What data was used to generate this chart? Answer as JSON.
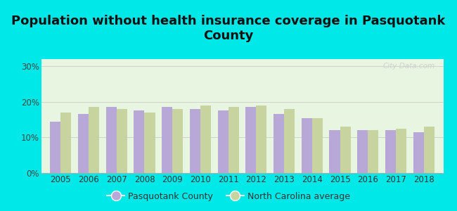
{
  "title": "Population without health insurance coverage in Pasquotank\nCounty",
  "years": [
    2005,
    2006,
    2007,
    2008,
    2009,
    2010,
    2011,
    2012,
    2013,
    2014,
    2015,
    2016,
    2017,
    2018
  ],
  "pasquotank": [
    14.5,
    16.5,
    18.5,
    17.5,
    18.5,
    18.0,
    17.5,
    18.5,
    16.5,
    15.5,
    12.0,
    12.0,
    12.0,
    11.5
  ],
  "nc_average": [
    17.0,
    18.5,
    18.0,
    17.0,
    18.0,
    19.0,
    18.5,
    19.0,
    18.0,
    15.5,
    13.0,
    12.0,
    12.5,
    13.0
  ],
  "pasquotank_color": "#b8a8d8",
  "nc_color": "#c8d4a0",
  "background_outer": "#00e8e8",
  "background_plot_top": "#e8f5e0",
  "background_plot_bottom": "#f5faf0",
  "ylim": [
    0,
    32
  ],
  "yticks": [
    0,
    10,
    20,
    30
  ],
  "ytick_labels": [
    "0%",
    "10%",
    "20%",
    "30%"
  ],
  "bar_width": 0.38,
  "legend_pasquotank": "Pasquotank County",
  "legend_nc": "North Carolina average",
  "title_fontsize": 13,
  "tick_fontsize": 8.5,
  "legend_fontsize": 9
}
